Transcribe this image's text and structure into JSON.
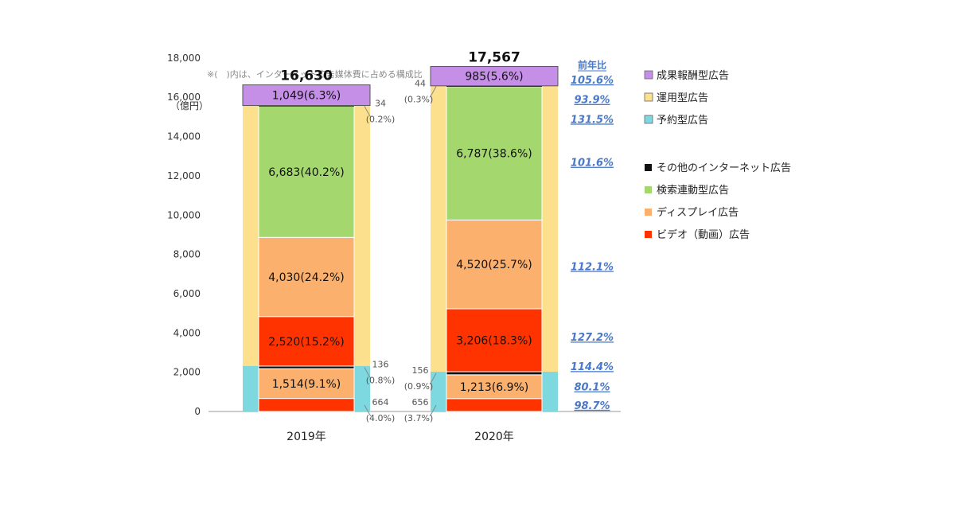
{
  "chart_data": {
    "type": "bar",
    "stacked": true,
    "note": "※(　)内は、インターネット広告媒体費に占める構成比",
    "y_unit": "（億円）",
    "ylim": [
      0,
      18000
    ],
    "y_ticks": [
      "0",
      "2,000",
      "4,000",
      "6,000",
      "8,000",
      "10,000",
      "12,000",
      "14,000",
      "16,000",
      "18,000"
    ],
    "categories": [
      "2019年",
      "2020年"
    ],
    "totals": [
      "16,630",
      "17,567"
    ],
    "outer_series": [
      {
        "name": "予約型広告",
        "color": "#7dd8e0",
        "values": [
          2324,
          2025
        ]
      },
      {
        "name": "運用型広告",
        "color": "#fde08d",
        "values": [
          13257,
          14557
        ]
      },
      {
        "name": "成果報酬型広告",
        "color": "#c58fe8",
        "values": [
          1049,
          985
        ]
      }
    ],
    "inner_series": [
      {
        "name": "ビデオ（動画）広告",
        "color": "#ff3300",
        "values": [
          664,
          656
        ],
        "labels": [
          "",
          ""
        ]
      },
      {
        "name": "ディスプレイ広告",
        "color": "#fbb06e",
        "values": [
          1514,
          1213
        ],
        "labels": [
          "1,514(9.1%)",
          "1,213(6.9%)"
        ]
      },
      {
        "name": "その他のインターネット広告",
        "color": "#111111",
        "values": [
          136,
          156
        ],
        "labels": [
          "",
          ""
        ]
      },
      {
        "name": "ビデオ（動画）広告",
        "color": "#ff3300",
        "values": [
          2520,
          3206
        ],
        "labels": [
          "2,520(15.2%)",
          "3,206(18.3%)"
        ]
      },
      {
        "name": "ディスプレイ広告",
        "color": "#fbb06e",
        "values": [
          4030,
          4520
        ],
        "labels": [
          "4,030(24.2%)",
          "4,520(25.7%)"
        ]
      },
      {
        "name": "検索連動型広告",
        "color": "#a4d86e",
        "values": [
          6683,
          6787
        ],
        "labels": [
          "6,683(40.2%)",
          "6,787(38.6%)"
        ]
      },
      {
        "name": "その他のインターネット広告",
        "color": "#111111",
        "values": [
          34,
          44
        ],
        "labels": [
          "",
          ""
        ]
      }
    ],
    "performance_labels": [
      "1,049(6.3%)",
      "985(5.6%)"
    ],
    "callouts_2019": [
      {
        "value": "34",
        "pct": "(0.2%)",
        "y": 15550
      },
      {
        "value": "136",
        "pct": "(0.8%)",
        "y": 2250
      },
      {
        "value": "664",
        "pct": "(4.0%)",
        "y": 330
      }
    ],
    "callouts_2020": [
      {
        "value": "44",
        "pct": "(0.3%)",
        "y": 16560
      },
      {
        "value": "156",
        "pct": "(0.9%)",
        "y": 1950
      },
      {
        "value": "656",
        "pct": "(3.7%)",
        "y": 330
      }
    ],
    "yoy_header": "前年比",
    "yoy": [
      {
        "text": "105.6%",
        "y": 16900
      },
      {
        "text": "93.9%",
        "y": 15900
      },
      {
        "text": "131.5%",
        "y": 14900
      },
      {
        "text": "101.6%",
        "y": 12700
      },
      {
        "text": "112.1%",
        "y": 7400
      },
      {
        "text": "127.2%",
        "y": 3800
      },
      {
        "text": "114.4%",
        "y": 2300
      },
      {
        "text": "80.1%",
        "y": 1270
      },
      {
        "text": "98.7%",
        "y": 330
      }
    ],
    "legend_top": [
      {
        "label": "成果報酬型広告",
        "color": "#c58fe8"
      },
      {
        "label": "運用型広告",
        "color": "#fde08d"
      },
      {
        "label": "予約型広告",
        "color": "#7dd8e0"
      }
    ],
    "legend_bottom": [
      {
        "label": "その他のインターネット広告",
        "color": "#111111"
      },
      {
        "label": "検索連動型広告",
        "color": "#a4d86e"
      },
      {
        "label": "ディスプレイ広告",
        "color": "#fbb06e"
      },
      {
        "label": "ビデオ（動画）広告",
        "color": "#ff3300"
      }
    ]
  }
}
